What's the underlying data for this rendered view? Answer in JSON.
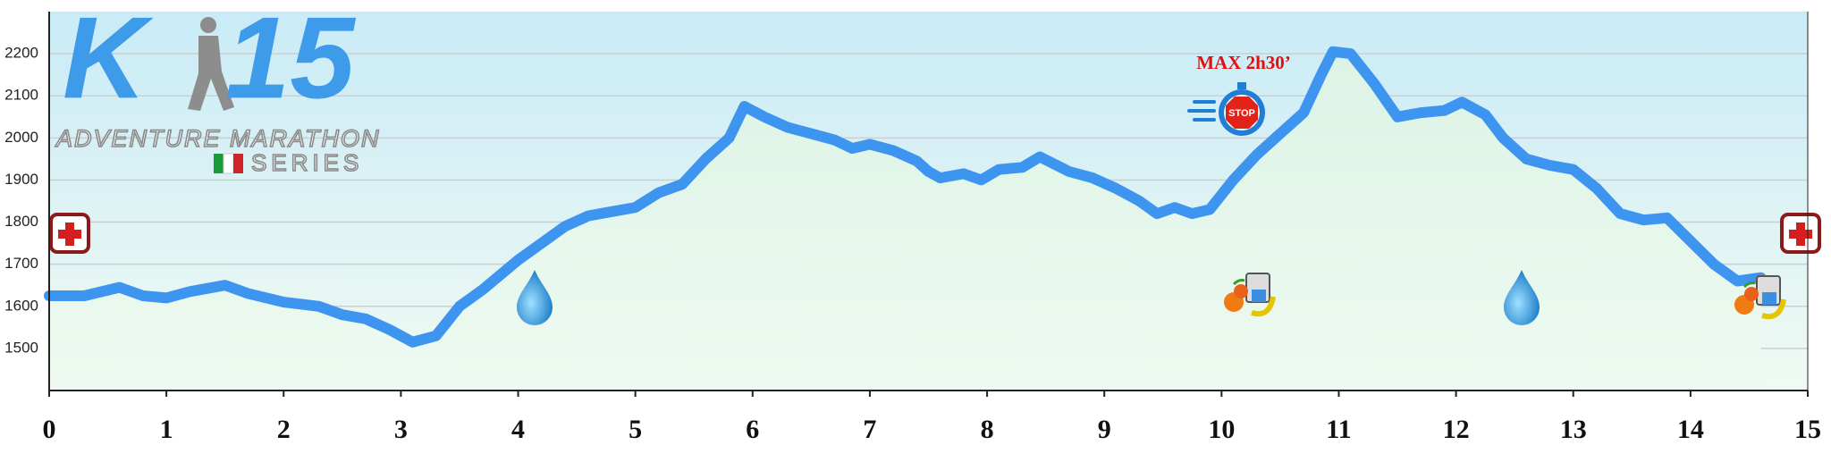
{
  "chart_data": {
    "type": "line",
    "logo": {
      "left": "K",
      "right": "15",
      "line1": "ADVENTURE MARATHON",
      "line2": "SERIES"
    },
    "annotations": [
      "MAX 2h30’",
      "STOP"
    ],
    "x": [
      0,
      0.3,
      0.6,
      0.8,
      1.0,
      1.2,
      1.5,
      1.7,
      2.0,
      2.3,
      2.5,
      2.7,
      2.9,
      3.1,
      3.3,
      3.5,
      3.7,
      4.0,
      4.2,
      4.4,
      4.6,
      4.8,
      5.0,
      5.2,
      5.4,
      5.6,
      5.8,
      5.93,
      6.1,
      6.3,
      6.5,
      6.7,
      6.85,
      7.0,
      7.2,
      7.4,
      7.5,
      7.6,
      7.8,
      7.95,
      8.1,
      8.3,
      8.45,
      8.7,
      8.9,
      9.1,
      9.3,
      9.45,
      9.6,
      9.75,
      9.9,
      10.1,
      10.3,
      10.5,
      10.7,
      10.85,
      10.95,
      11.1,
      11.3,
      11.5,
      11.7,
      11.9,
      12.05,
      12.25,
      12.4,
      12.6,
      12.8,
      13.0,
      13.2,
      13.4,
      13.6,
      13.8,
      14.0,
      14.2,
      14.4,
      14.6
    ],
    "values": [
      1625,
      1625,
      1645,
      1625,
      1620,
      1635,
      1650,
      1630,
      1610,
      1600,
      1580,
      1570,
      1545,
      1515,
      1530,
      1600,
      1640,
      1710,
      1750,
      1790,
      1815,
      1825,
      1835,
      1870,
      1890,
      1950,
      2000,
      2075,
      2050,
      2025,
      2010,
      1995,
      1975,
      1985,
      1970,
      1945,
      1920,
      1905,
      1915,
      1900,
      1925,
      1930,
      1955,
      1920,
      1905,
      1880,
      1850,
      1820,
      1835,
      1820,
      1830,
      1900,
      1960,
      2010,
      2060,
      2150,
      2205,
      2200,
      2130,
      2050,
      2060,
      2065,
      2085,
      2055,
      2000,
      1950,
      1935,
      1925,
      1880,
      1820,
      1805,
      1810,
      1755,
      1700,
      1660,
      1668
    ],
    "color": "#3d95f0",
    "xlim": [
      0,
      15
    ],
    "xticks": [
      0,
      1,
      2,
      3,
      4,
      5,
      6,
      7,
      8,
      9,
      10,
      11,
      12,
      13,
      14,
      15
    ],
    "ylim": [
      1400,
      2300
    ],
    "yticks": [
      1500,
      1600,
      1700,
      1800,
      1900,
      2000,
      2100,
      2200
    ],
    "grid": true
  }
}
